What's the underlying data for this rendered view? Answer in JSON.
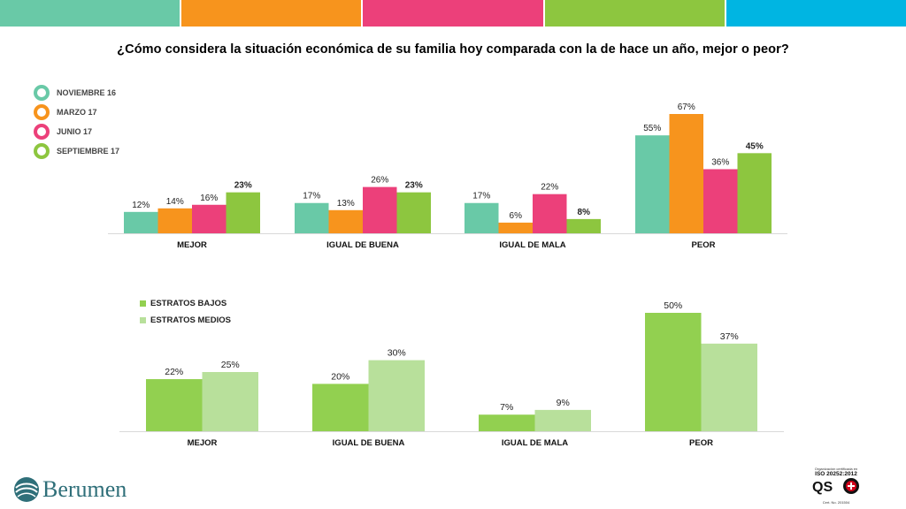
{
  "colors": {
    "bar1": "#69c9a7",
    "bar2": "#f7941d",
    "bar3": "#ec407a",
    "bar4": "#8dc63f",
    "bar5": "#00b5e2",
    "low": "#92d050",
    "mid": "#b8e09b"
  },
  "title": "¿Cómo considera la situación económica de su familia hoy comparada con la de hace un año, mejor o peor?",
  "legend_top": [
    {
      "label": "NOVIEMBRE 16",
      "color": "#69c9a7"
    },
    {
      "label": "MARZO 17",
      "color": "#f7941d"
    },
    {
      "label": "JUNIO 17",
      "color": "#ec407a"
    },
    {
      "label": "SEPTIEMBRE 17",
      "color": "#8dc63f"
    }
  ],
  "legend_bottom": [
    {
      "label": "ESTRATOS BAJOS",
      "color": "#92d050"
    },
    {
      "label": "ESTRATOS MEDIOS",
      "color": "#b8e09b"
    }
  ],
  "chart_data": [
    {
      "type": "bar",
      "title": "",
      "categories": [
        "MEJOR",
        "IGUAL DE BUENA",
        "IGUAL DE MALA",
        "PEOR"
      ],
      "series": [
        {
          "name": "NOVIEMBRE 16",
          "values": [
            12,
            17,
            17,
            55
          ],
          "labels": [
            "12%",
            "17%",
            "17%",
            "55%"
          ],
          "bold": false
        },
        {
          "name": "MARZO 17",
          "values": [
            14,
            13,
            6,
            67
          ],
          "labels": [
            "14%",
            "13%",
            "6%",
            "67%"
          ],
          "bold": false
        },
        {
          "name": "JUNIO 17",
          "values": [
            16,
            26,
            22,
            36
          ],
          "labels": [
            "16%",
            "26%",
            "22%",
            "36%"
          ],
          "bold": false
        },
        {
          "name": "SEPTIEMBRE 17",
          "values": [
            23,
            23,
            8,
            45
          ],
          "labels": [
            "23%",
            "23%",
            "8%",
            "45%"
          ],
          "bold": true
        }
      ],
      "ylim": [
        0,
        67
      ],
      "grid": false,
      "legend": "top-left"
    },
    {
      "type": "bar",
      "title": "",
      "categories": [
        "MEJOR",
        "IGUAL DE BUENA",
        "IGUAL DE MALA",
        "PEOR"
      ],
      "series": [
        {
          "name": "ESTRATOS BAJOS",
          "values": [
            22,
            20,
            7,
            50
          ],
          "labels": [
            "22%",
            "20%",
            "7%",
            "50%"
          ],
          "bold": false
        },
        {
          "name": "ESTRATOS MEDIOS",
          "values": [
            25,
            30,
            9,
            37
          ],
          "labels": [
            "25%",
            "30%",
            "9%",
            "37%"
          ],
          "bold": false
        }
      ],
      "ylim": [
        0,
        50
      ],
      "grid": false,
      "legend": "top-left"
    }
  ],
  "logo": {
    "text": "Berumen",
    "icon": "globe-icon"
  },
  "certification": {
    "top_text": "Organización certificada en",
    "standard": "ISO 20252:2012",
    "bottom_text": "Cert. No. 201504"
  }
}
